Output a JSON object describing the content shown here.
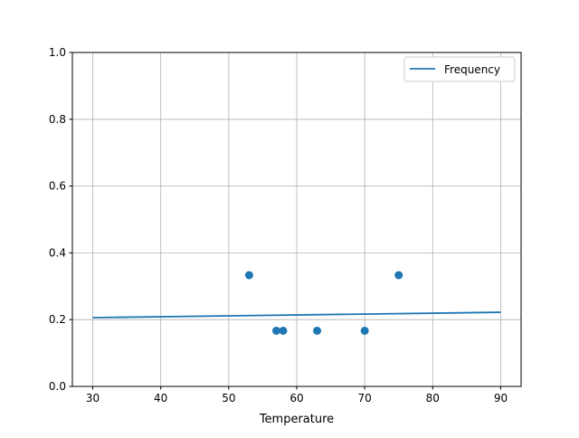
{
  "chart_data": {
    "type": "scatter",
    "title": "",
    "xlabel": "Temperature",
    "ylabel": "",
    "xlim": [
      27,
      93
    ],
    "ylim": [
      0,
      1
    ],
    "grid": true,
    "legend_placement": "top-right",
    "x_ticks": [
      30,
      40,
      50,
      60,
      70,
      80,
      90
    ],
    "y_ticks": [
      "0.0",
      "0.2",
      "0.4",
      "0.6",
      "0.8",
      "1.0"
    ],
    "color": "#1f77b4",
    "scatter_points": [
      {
        "x": 53,
        "y": 0.3333
      },
      {
        "x": 57,
        "y": 0.1667
      },
      {
        "x": 58,
        "y": 0.1667
      },
      {
        "x": 63,
        "y": 0.1667
      },
      {
        "x": 70,
        "y": 0.1667
      },
      {
        "x": 75,
        "y": 0.3333
      }
    ],
    "line_series": {
      "name": "Frequency",
      "x": [
        30,
        90
      ],
      "y": [
        0.206,
        0.222
      ]
    }
  }
}
